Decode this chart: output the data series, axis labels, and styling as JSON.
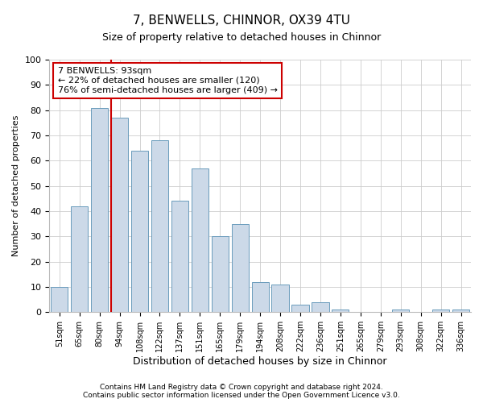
{
  "title": "7, BENWELLS, CHINNOR, OX39 4TU",
  "subtitle": "Size of property relative to detached houses in Chinnor",
  "xlabel": "Distribution of detached houses by size in Chinnor",
  "ylabel": "Number of detached properties",
  "categories": [
    "51sqm",
    "65sqm",
    "80sqm",
    "94sqm",
    "108sqm",
    "122sqm",
    "137sqm",
    "151sqm",
    "165sqm",
    "179sqm",
    "194sqm",
    "208sqm",
    "222sqm",
    "236sqm",
    "251sqm",
    "265sqm",
    "279sqm",
    "293sqm",
    "308sqm",
    "322sqm",
    "336sqm"
  ],
  "values": [
    10,
    42,
    81,
    77,
    64,
    68,
    44,
    57,
    30,
    35,
    12,
    11,
    3,
    4,
    1,
    0,
    0,
    1,
    0,
    1,
    1
  ],
  "bar_color": "#ccd9e8",
  "bar_edge_color": "#6a9cbc",
  "annotation_line1": "7 BENWELLS: 93sqm",
  "annotation_line2": "← 22% of detached houses are smaller (120)",
  "annotation_line3": "76% of semi-detached houses are larger (409) →",
  "annotation_box_facecolor": "#ffffff",
  "annotation_box_edgecolor": "#cc0000",
  "vline_color": "#cc0000",
  "footer1": "Contains HM Land Registry data © Crown copyright and database right 2024.",
  "footer2": "Contains public sector information licensed under the Open Government Licence v3.0.",
  "ylim": [
    0,
    100
  ],
  "yticks": [
    0,
    10,
    20,
    30,
    40,
    50,
    60,
    70,
    80,
    90,
    100
  ],
  "bg_color": "#ffffff",
  "plot_bg_color": "#ffffff",
  "grid_color": "#cccccc",
  "title_fontsize": 11,
  "subtitle_fontsize": 9,
  "xlabel_fontsize": 9,
  "ylabel_fontsize": 8,
  "tick_fontsize": 8,
  "xtick_fontsize": 7,
  "annotation_fontsize": 8,
  "footer_fontsize": 6.5
}
